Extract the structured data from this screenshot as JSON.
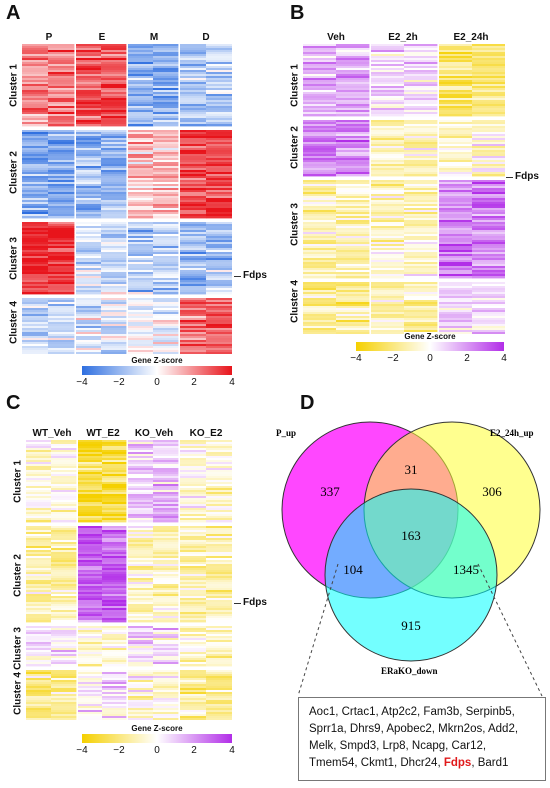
{
  "panels": {
    "A": {
      "letter": "A",
      "columns": [
        "P",
        "E",
        "M",
        "D"
      ],
      "clusters": [
        "Cluster 1",
        "Cluster 2",
        "Cluster 3",
        "Cluster 4"
      ],
      "callout": "Fdps",
      "legend_title": "Gene Z-score",
      "legend_ticks": [
        "−4",
        "−2",
        "0",
        "2",
        "4"
      ],
      "palette": [
        "#2f6fe0",
        "#ffffff",
        "#e8141b"
      ]
    },
    "B": {
      "letter": "B",
      "columns": [
        "Veh",
        "E2_2h",
        "E2_24h"
      ],
      "clusters": [
        "Cluster 1",
        "Cluster 2",
        "Cluster 3",
        "Cluster 4"
      ],
      "callout": "Fdps",
      "legend_title": "Gene Z-score",
      "legend_ticks": [
        "−4",
        "−2",
        "0",
        "2",
        "4"
      ],
      "palette": [
        "#f5d000",
        "#ffffff",
        "#b22ee8"
      ]
    },
    "C": {
      "letter": "C",
      "columns": [
        "WT_Veh",
        "WT_E2",
        "KO_Veh",
        "KO_E2"
      ],
      "clusters": [
        "Cluster 1",
        "Cluster 2",
        "Cluster 3",
        "Cluster 4"
      ],
      "callout": "Fdps",
      "legend_title": "Gene Z-score",
      "legend_ticks": [
        "−4",
        "−2",
        "0",
        "2",
        "4"
      ],
      "palette": [
        "#f5d000",
        "#ffffff",
        "#b22ee8"
      ]
    },
    "D": {
      "letter": "D",
      "sets": [
        "P_up",
        "E2_24h_up",
        "ERaKO_down"
      ],
      "set_colors": [
        "#ff33ff",
        "#ffff33",
        "#00ffff"
      ],
      "counts": {
        "p_only": "337",
        "p_e2": "31",
        "e2_only": "306",
        "all_three": "163",
        "p_ko": "104",
        "e2_ko": "1345",
        "ko_only": "915"
      },
      "genes_before": "Aoc1, Crtac1, Atp2c2, Fam3b, Serpinb5, Sprr1a, Dhrs9, Apobec2, Mkrn2os, Add2, Melk, Smpd3, Lrp8, Ncapg, Car12, Tmem54, Ckmt1, Dhcr24,",
      "highlight_gene": "Fdps",
      "genes_after": ", Bard1",
      "highlight_color": "#e0191b"
    }
  }
}
